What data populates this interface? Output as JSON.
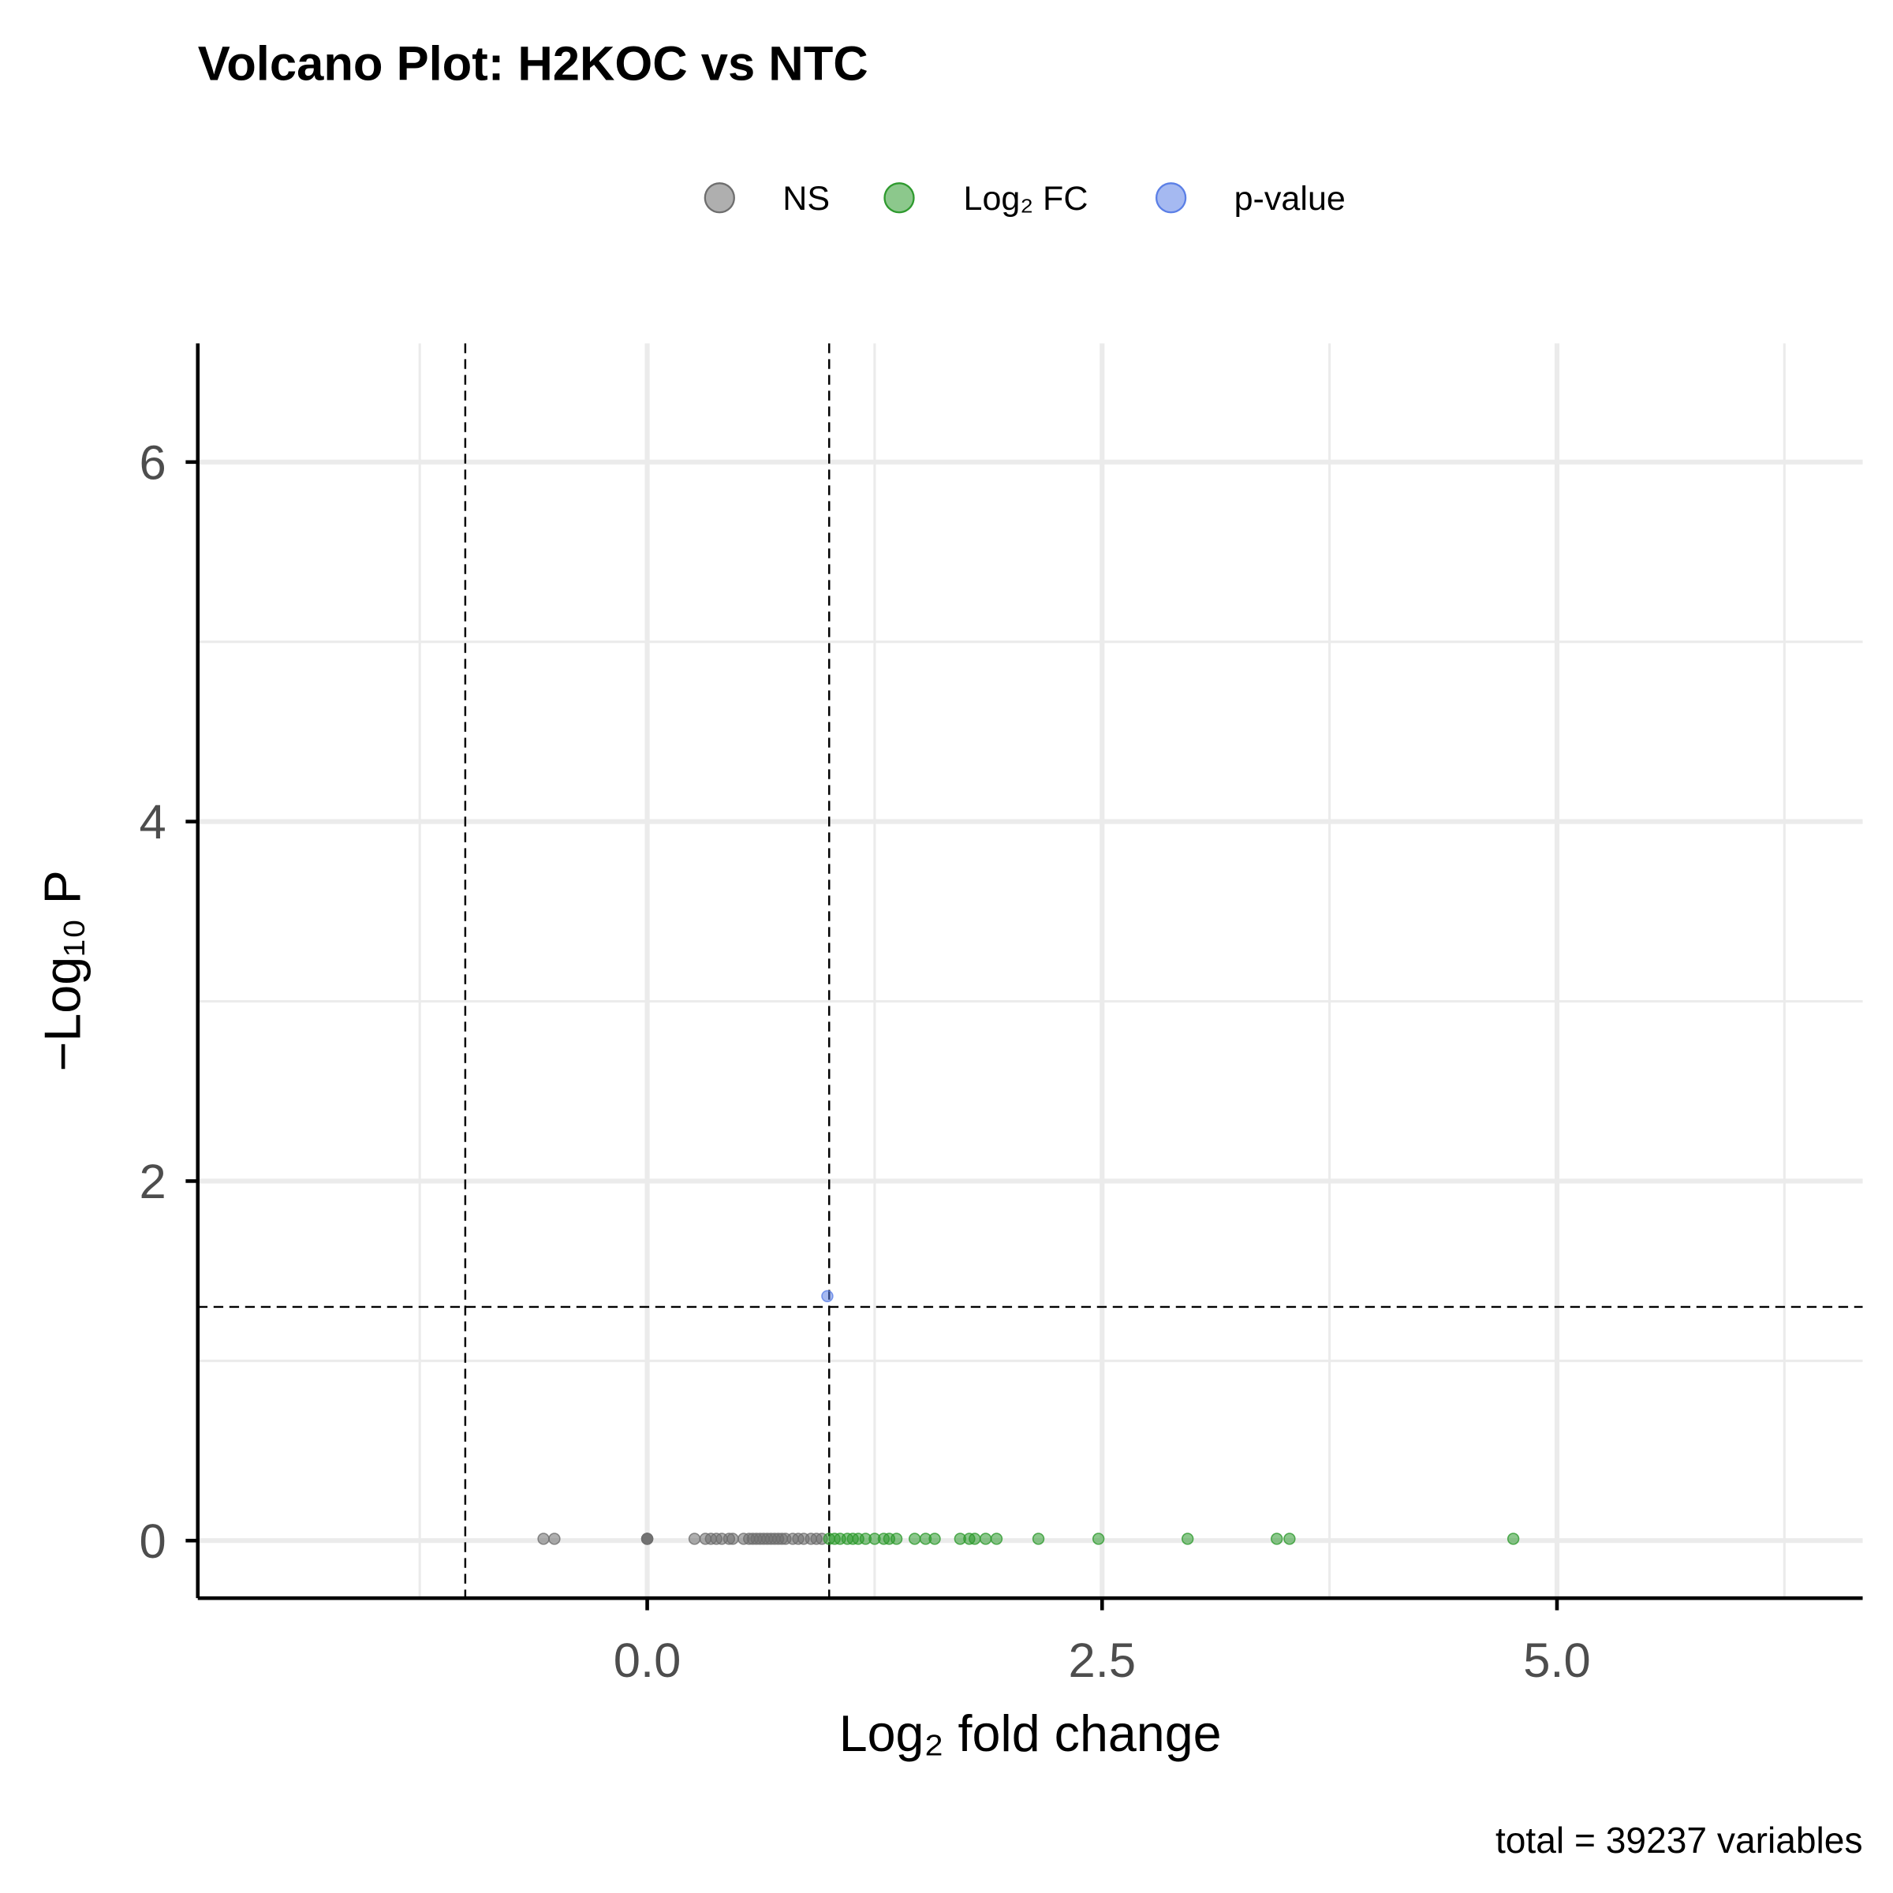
{
  "chart_data": {
    "type": "scatter",
    "title": "Volcano Plot: H2KOC vs NTC",
    "x_label": "Log₂ fold change",
    "y_label": "−Log₁₀ P",
    "caption": "total = 39237 variables",
    "legend": "top",
    "xlim": [
      -2.47,
      6.68
    ],
    "ylim": [
      -0.32,
      6.66
    ],
    "xticks": [
      {
        "value": 0,
        "label": "0.0"
      },
      {
        "value": 2.5,
        "label": "2.5"
      },
      {
        "value": 5,
        "label": "5.0"
      }
    ],
    "yticks": [
      0,
      2,
      4,
      6
    ],
    "x_minor_ticks": [
      -1.25,
      1.25,
      3.75,
      6.25
    ],
    "y_minor_ticks": [
      1,
      3,
      5
    ],
    "grid": true,
    "fc_cutoffs": [
      -1,
      1
    ],
    "p_cutoff": 1.3,
    "series": [
      {
        "name": "NS",
        "color": "#6e6e6e",
        "x": [
          -0.57,
          -0.51,
          0,
          0,
          0,
          0,
          0.26,
          0.32,
          0.35,
          0.38,
          0.41,
          0.45,
          0.47,
          0.53,
          0.56,
          0.58,
          0.6,
          0.62,
          0.64,
          0.66,
          0.68,
          0.7,
          0.72,
          0.74,
          0.76,
          0.8,
          0.83,
          0.86,
          0.9,
          0.93,
          0.96
        ],
        "values": [
          0.01,
          0.01,
          0.01,
          0.01,
          0.01,
          0.01,
          0.01,
          0.01,
          0.01,
          0.01,
          0.01,
          0.01,
          0.01,
          0.01,
          0.01,
          0.01,
          0.01,
          0.01,
          0.01,
          0.01,
          0.01,
          0.01,
          0.01,
          0.01,
          0.01,
          0.01,
          0.01,
          0.01,
          0.01,
          0.01,
          0.01
        ]
      },
      {
        "name": "Log₂ FC",
        "color": "#2e9a2e",
        "x": [
          1.0,
          1.03,
          1.06,
          1.1,
          1.13,
          1.16,
          1.2,
          1.25,
          1.3,
          1.33,
          1.37,
          1.47,
          1.53,
          1.58,
          1.72,
          1.77,
          1.8,
          1.86,
          1.92,
          2.15,
          2.48,
          2.97,
          3.46,
          3.53,
          4.76
        ],
        "values": [
          0.01,
          0.01,
          0.01,
          0.01,
          0.01,
          0.01,
          0.01,
          0.01,
          0.01,
          0.01,
          0.01,
          0.01,
          0.01,
          0.01,
          0.01,
          0.01,
          0.01,
          0.01,
          0.01,
          0.01,
          0.01,
          0.01,
          0.01,
          0.01,
          0.01
        ]
      },
      {
        "name": "p-value",
        "color": "#5b7fe6",
        "x": [
          0.99
        ],
        "values": [
          1.36
        ]
      }
    ]
  }
}
